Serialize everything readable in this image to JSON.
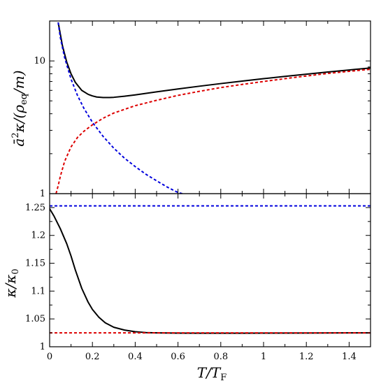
{
  "chart_data": [
    {
      "type": "line",
      "panel": "top",
      "yscale": "log",
      "xlim": [
        0,
        1.5
      ],
      "ylim": [
        1,
        20
      ],
      "ylabel": {
        "pre": "ā",
        "sup": "2",
        "mid": "κ/(ρ",
        "sub": "eq",
        "post": "/m)"
      },
      "y_ticks": [
        {
          "value": 1,
          "label": "1"
        },
        {
          "value": 10,
          "label": "10"
        }
      ],
      "grid": false,
      "series": [
        {
          "color": "#000000",
          "style": "solid",
          "x": [
            0.04,
            0.06,
            0.08,
            0.1,
            0.12,
            0.15,
            0.18,
            0.2,
            0.22,
            0.25,
            0.28,
            0.3,
            0.35,
            0.4,
            0.5,
            0.6,
            0.7,
            0.8,
            0.9,
            1.0,
            1.1,
            1.2,
            1.3,
            1.4,
            1.5
          ],
          "y": [
            19.5,
            13.0,
            9.8,
            8.0,
            6.9,
            6.0,
            5.6,
            5.45,
            5.35,
            5.3,
            5.3,
            5.32,
            5.42,
            5.55,
            5.85,
            6.15,
            6.45,
            6.75,
            7.05,
            7.35,
            7.65,
            7.95,
            8.25,
            8.55,
            8.85
          ]
        },
        {
          "color": "#0000dd",
          "style": "dashed",
          "x": [
            0.04,
            0.05,
            0.07,
            0.1,
            0.13,
            0.16,
            0.2,
            0.25,
            0.3,
            0.35,
            0.4,
            0.45,
            0.5,
            0.55,
            0.6,
            0.62
          ],
          "y": [
            19.5,
            15.0,
            10.6,
            7.3,
            5.5,
            4.4,
            3.45,
            2.7,
            2.2,
            1.85,
            1.6,
            1.4,
            1.25,
            1.12,
            1.02,
            1.0
          ]
        },
        {
          "color": "#dd0000",
          "style": "dashed",
          "x": [
            0.03,
            0.04,
            0.05,
            0.07,
            0.1,
            0.13,
            0.16,
            0.2,
            0.25,
            0.3,
            0.4,
            0.5,
            0.6,
            0.7,
            0.8,
            0.9,
            1.0,
            1.1,
            1.2,
            1.3,
            1.4,
            1.5
          ],
          "y": [
            1.0,
            1.15,
            1.35,
            1.75,
            2.25,
            2.65,
            2.95,
            3.3,
            3.7,
            4.05,
            4.6,
            5.05,
            5.5,
            5.9,
            6.3,
            6.65,
            7.0,
            7.35,
            7.7,
            8.05,
            8.35,
            8.65
          ]
        }
      ]
    },
    {
      "type": "line",
      "panel": "bottom",
      "xlim": [
        0,
        1.5
      ],
      "ylim": [
        1.0,
        1.275
      ],
      "xlabel": {
        "pre": "T/T",
        "sub": "F"
      },
      "ylabel": {
        "pre": "κ/κ",
        "sub": "0"
      },
      "x_ticks": [
        {
          "value": 0,
          "label": "0"
        },
        {
          "value": 0.2,
          "label": "0.2"
        },
        {
          "value": 0.4,
          "label": "0.4"
        },
        {
          "value": 0.6,
          "label": "0.6"
        },
        {
          "value": 0.8,
          "label": "0.8"
        },
        {
          "value": 1.0,
          "label": "1"
        },
        {
          "value": 1.2,
          "label": "1.2"
        },
        {
          "value": 1.4,
          "label": "1.4"
        }
      ],
      "y_ticks": [
        {
          "value": 1.0,
          "label": "1"
        },
        {
          "value": 1.05,
          "label": "1.05"
        },
        {
          "value": 1.1,
          "label": "1.1"
        },
        {
          "value": 1.15,
          "label": "1.15"
        },
        {
          "value": 1.2,
          "label": "1.2"
        },
        {
          "value": 1.25,
          "label": "1.25"
        }
      ],
      "grid": false,
      "series": [
        {
          "color": "#000000",
          "style": "solid",
          "x": [
            0.0,
            0.02,
            0.05,
            0.08,
            0.1,
            0.12,
            0.15,
            0.18,
            0.2,
            0.23,
            0.26,
            0.3,
            0.35,
            0.4,
            0.45,
            0.5,
            0.6,
            0.7,
            0.8,
            0.9,
            1.0,
            1.2,
            1.4,
            1.5
          ],
          "y": [
            1.248,
            1.235,
            1.212,
            1.185,
            1.163,
            1.138,
            1.105,
            1.08,
            1.067,
            1.053,
            1.043,
            1.035,
            1.03,
            1.027,
            1.0255,
            1.025,
            1.0245,
            1.0243,
            1.0243,
            1.0244,
            1.0245,
            1.0247,
            1.0249,
            1.025
          ]
        },
        {
          "color": "#0000dd",
          "style": "dashed",
          "x": [
            0.0,
            1.5
          ],
          "y": [
            1.253,
            1.253
          ]
        },
        {
          "color": "#dd0000",
          "style": "dashed",
          "x": [
            0.0,
            1.5
          ],
          "y": [
            1.025,
            1.025
          ]
        }
      ]
    }
  ]
}
